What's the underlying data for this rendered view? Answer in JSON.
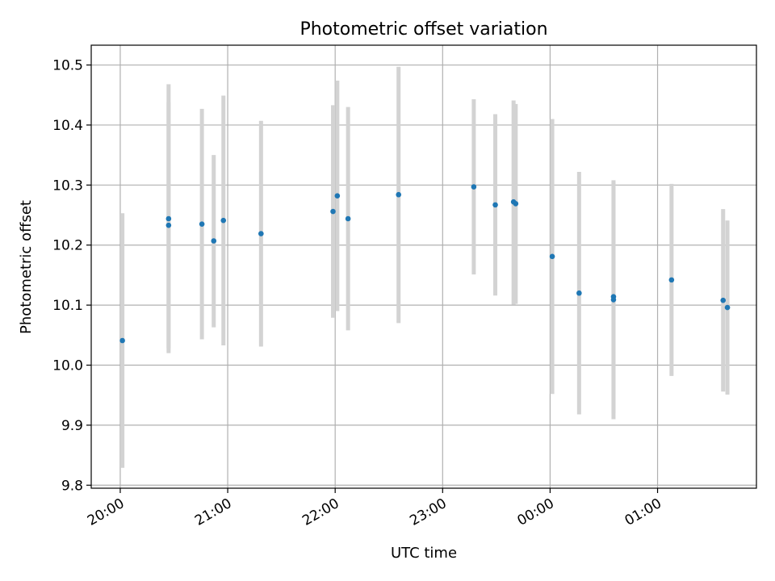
{
  "chart_data": {
    "type": "scatter",
    "title": "Photometric offset variation",
    "xlabel": "UTC time",
    "ylabel": "Photometric offset",
    "x_unit": "hours (UTC), continuous across midnight",
    "xlim": [
      19.73,
      25.92
    ],
    "ylim": [
      9.795,
      10.533
    ],
    "x_ticks": [
      {
        "value": 20,
        "label": "20:00"
      },
      {
        "value": 21,
        "label": "21:00"
      },
      {
        "value": 22,
        "label": "22:00"
      },
      {
        "value": 23,
        "label": "23:00"
      },
      {
        "value": 24,
        "label": "00:00"
      },
      {
        "value": 25,
        "label": "01:00"
      }
    ],
    "y_ticks": [
      {
        "value": 9.8,
        "label": "9.8"
      },
      {
        "value": 9.9,
        "label": "9.9"
      },
      {
        "value": 10.0,
        "label": "10.0"
      },
      {
        "value": 10.1,
        "label": "10.1"
      },
      {
        "value": 10.2,
        "label": "10.2"
      },
      {
        "value": 10.3,
        "label": "10.3"
      },
      {
        "value": 10.4,
        "label": "10.4"
      },
      {
        "value": 10.5,
        "label": "10.5"
      }
    ],
    "grid": true,
    "marker_color": "#1f77b4",
    "errorbar_color": "#d3d3d3",
    "points": [
      {
        "x": 20.02,
        "y": 10.041,
        "lo": 9.829,
        "hi": 10.253
      },
      {
        "x": 20.45,
        "y": 10.244,
        "lo": 10.02,
        "hi": 10.468
      },
      {
        "x": 20.45,
        "y": 10.233,
        "lo": 10.028,
        "hi": 10.438
      },
      {
        "x": 20.76,
        "y": 10.235,
        "lo": 10.043,
        "hi": 10.427
      },
      {
        "x": 20.87,
        "y": 10.207,
        "lo": 10.063,
        "hi": 10.35
      },
      {
        "x": 20.96,
        "y": 10.241,
        "lo": 10.033,
        "hi": 10.449
      },
      {
        "x": 21.31,
        "y": 10.219,
        "lo": 10.031,
        "hi": 10.407
      },
      {
        "x": 21.98,
        "y": 10.256,
        "lo": 10.079,
        "hi": 10.433
      },
      {
        "x": 22.02,
        "y": 10.282,
        "lo": 10.09,
        "hi": 10.474
      },
      {
        "x": 22.12,
        "y": 10.244,
        "lo": 10.058,
        "hi": 10.43
      },
      {
        "x": 22.59,
        "y": 10.284,
        "lo": 10.07,
        "hi": 10.497
      },
      {
        "x": 23.29,
        "y": 10.297,
        "lo": 10.151,
        "hi": 10.443
      },
      {
        "x": 23.49,
        "y": 10.267,
        "lo": 10.116,
        "hi": 10.418
      },
      {
        "x": 23.66,
        "y": 10.272,
        "lo": 10.101,
        "hi": 10.441
      },
      {
        "x": 23.68,
        "y": 10.269,
        "lo": 10.102,
        "hi": 10.435
      },
      {
        "x": 24.02,
        "y": 10.181,
        "lo": 9.952,
        "hi": 10.41
      },
      {
        "x": 24.27,
        "y": 10.12,
        "lo": 9.918,
        "hi": 10.322
      },
      {
        "x": 24.59,
        "y": 10.114,
        "lo": 9.92,
        "hi": 10.308
      },
      {
        "x": 24.59,
        "y": 10.109,
        "lo": 9.91,
        "hi": 10.305
      },
      {
        "x": 25.13,
        "y": 10.142,
        "lo": 9.982,
        "hi": 10.302
      },
      {
        "x": 25.61,
        "y": 10.108,
        "lo": 9.956,
        "hi": 10.26
      },
      {
        "x": 25.65,
        "y": 10.096,
        "lo": 9.951,
        "hi": 10.241
      }
    ]
  }
}
